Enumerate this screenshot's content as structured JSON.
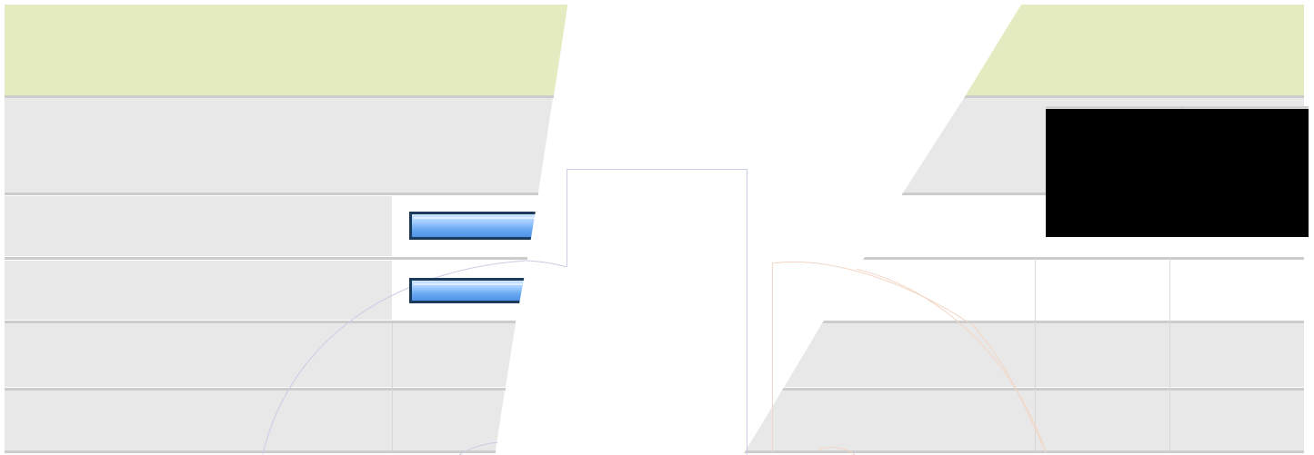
{
  "colors": {
    "header_band": "#e5ebc0",
    "row_fill": "#e8e8e8",
    "row_separator": "#cccccc",
    "background": "#ffffff",
    "black_panel": "#000000",
    "bar_fill": "#7db8f5",
    "bar_border": "#1c3a5a",
    "blue_outline": "#c9cde6",
    "orange_outline": "#f3d6c5"
  },
  "widgets": {
    "progress_bar_1": {
      "icon": "progress-bar-icon"
    },
    "progress_bar_2": {
      "icon": "progress-bar-icon"
    }
  }
}
